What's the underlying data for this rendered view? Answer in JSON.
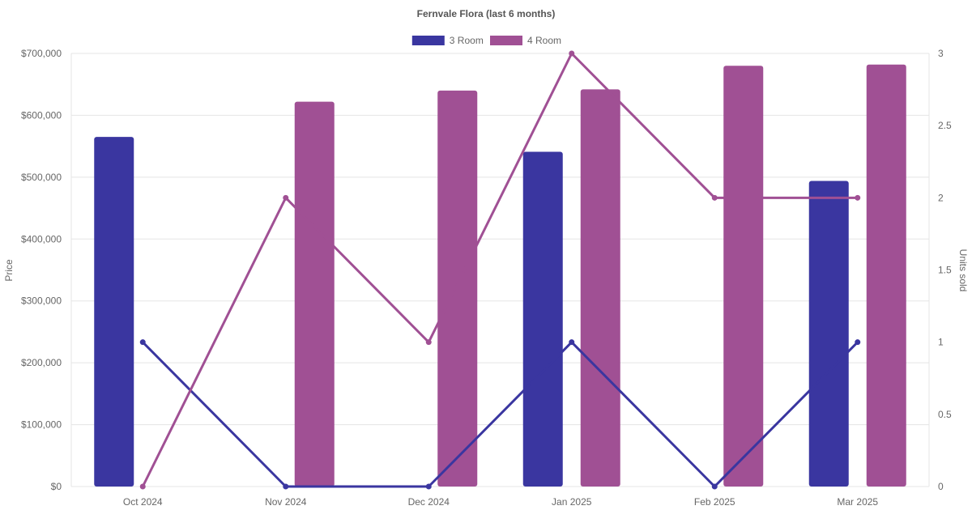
{
  "chart_data": {
    "type": "bar",
    "title": "Fernvale Flora (last 6 months)",
    "categories": [
      "Oct 2024",
      "Nov 2024",
      "Dec 2024",
      "Jan 2025",
      "Feb 2025",
      "Mar 2025"
    ],
    "series": [
      {
        "name": "3 Room",
        "type": "bar",
        "axis": "left",
        "color": "#3a36a0",
        "values": [
          565000,
          null,
          null,
          541000,
          null,
          494000
        ]
      },
      {
        "name": "4 Room",
        "type": "bar",
        "axis": "left",
        "color": "#a05094",
        "values": [
          null,
          622000,
          640000,
          642000,
          680000,
          682000
        ]
      },
      {
        "name": "3 Room",
        "type": "line",
        "axis": "right",
        "color": "#3a36a0",
        "values": [
          1,
          0,
          0,
          1,
          0,
          1
        ]
      },
      {
        "name": "4 Room",
        "type": "line",
        "axis": "right",
        "color": "#a05094",
        "values": [
          0,
          2,
          1,
          3,
          2,
          2
        ]
      }
    ],
    "legend": [
      {
        "label": "3 Room",
        "color": "#3a36a0"
      },
      {
        "label": "4 Room",
        "color": "#a05094"
      }
    ],
    "legend_position": "top",
    "ylabel": "Price",
    "y2label": "Units sold",
    "ylim": [
      0,
      700000
    ],
    "y2lim": [
      0,
      3
    ],
    "yticks": [
      "$0",
      "$100,000",
      "$200,000",
      "$300,000",
      "$400,000",
      "$500,000",
      "$600,000",
      "$700,000"
    ],
    "y2ticks": [
      "0",
      "0.5",
      "1",
      "1.5",
      "2",
      "2.5",
      "3"
    ],
    "grid": true
  }
}
